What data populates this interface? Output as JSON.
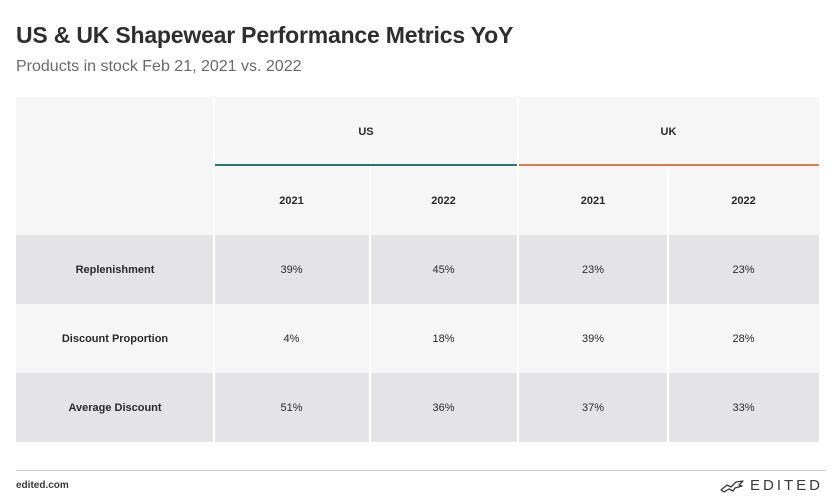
{
  "header": {
    "title": "US & UK Shapewear Performance Metrics YoY",
    "subtitle": "Products in stock Feb 21, 2021 vs. 2022"
  },
  "chart_data": {
    "type": "table",
    "groups": [
      {
        "name": "US",
        "color": "#1e7a6c",
        "years": [
          "2021",
          "2022"
        ]
      },
      {
        "name": "UK",
        "color": "#e07a4a",
        "years": [
          "2021",
          "2022"
        ]
      }
    ],
    "rows": [
      {
        "label": "Replenishment",
        "values": [
          "39%",
          "45%",
          "23%",
          "23%"
        ]
      },
      {
        "label": "Discount Proportion",
        "values": [
          "4%",
          "18%",
          "39%",
          "28%"
        ]
      },
      {
        "label": "Average Discount",
        "values": [
          "51%",
          "36%",
          "37%",
          "33%"
        ]
      }
    ]
  },
  "footer": {
    "source": "edited.com",
    "brand": "EDITED",
    "brand_icon": "edited-logo-icon"
  }
}
